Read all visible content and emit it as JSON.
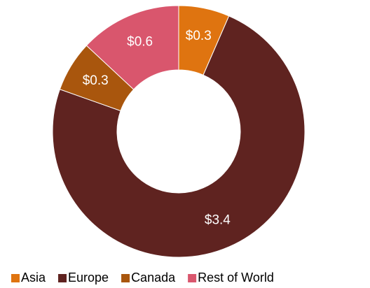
{
  "chart_data": {
    "type": "donut",
    "categories": [
      "Asia",
      "Europe",
      "Canada",
      "Rest of World"
    ],
    "values": [
      0.3,
      3.4,
      0.3,
      0.6
    ],
    "value_labels": [
      "$0.3",
      "$3.4",
      "$0.3",
      "$0.6"
    ],
    "colors": [
      "#df7410",
      "#5f2320",
      "#a9560d",
      "#d9566d"
    ],
    "legend": "bottom"
  }
}
